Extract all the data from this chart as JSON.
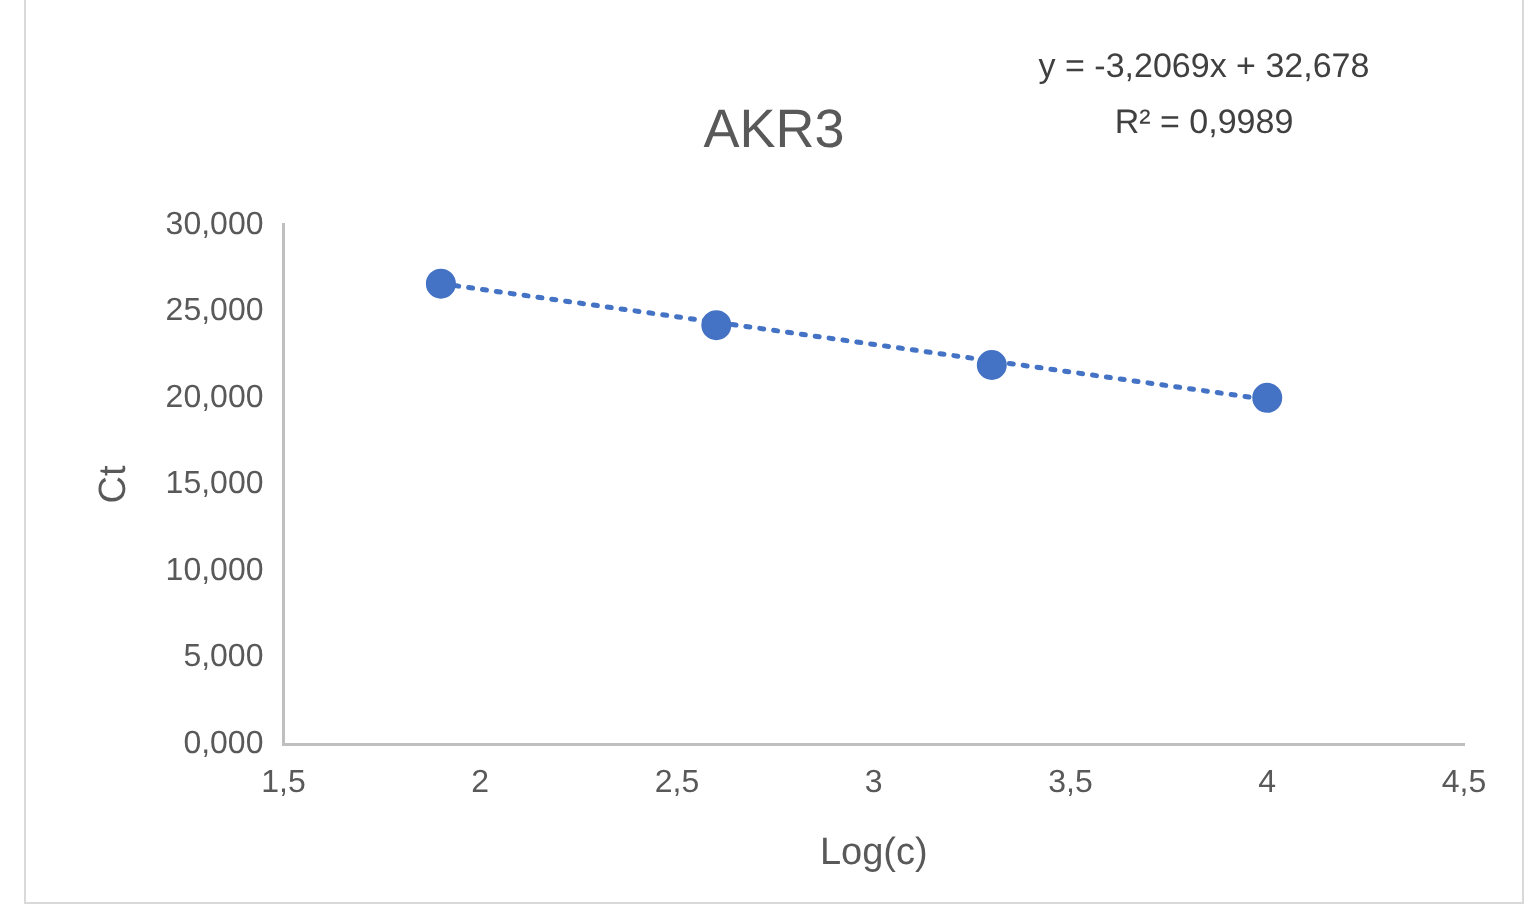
{
  "chart_data": {
    "type": "scatter",
    "title": "AKR3",
    "xlabel": "Log(c)",
    "ylabel": "Ct",
    "annotations": [
      "y = -3,2069x + 32,678",
      "R² = 0,9989"
    ],
    "series": [
      {
        "type": "scatter",
        "x": [
          1.9,
          2.6,
          3.3,
          4.0
        ],
        "values": [
          26.6,
          24.2,
          21.9,
          20.0
        ],
        "color": "#4472c4",
        "marker": "circle"
      },
      {
        "type": "line",
        "x": [
          1.9,
          4.0
        ],
        "values": [
          26.6,
          19.9
        ],
        "color": "#4472c4",
        "line_style": "dotted",
        "marker": "none"
      }
    ],
    "xlim": [
      1.5,
      4.5
    ],
    "xticks": [
      {
        "value": 1.5,
        "label": "1,5"
      },
      2,
      {
        "value": 2.5,
        "label": "2,5"
      },
      3,
      {
        "value": 3.5,
        "label": "3,5"
      },
      4,
      {
        "value": 4.5,
        "label": "4,5"
      }
    ],
    "ylim": [
      0,
      30
    ],
    "yticks": [
      {
        "value": 0,
        "label": "0,000"
      },
      {
        "value": 5,
        "label": "5,000"
      },
      {
        "value": 10,
        "label": "10,000"
      },
      {
        "value": 15,
        "label": "15,000"
      },
      {
        "value": 20,
        "label": "20,000"
      },
      {
        "value": 25,
        "label": "25,000"
      },
      {
        "value": 30,
        "label": "30,000"
      }
    ],
    "grid": false,
    "legend": false
  }
}
